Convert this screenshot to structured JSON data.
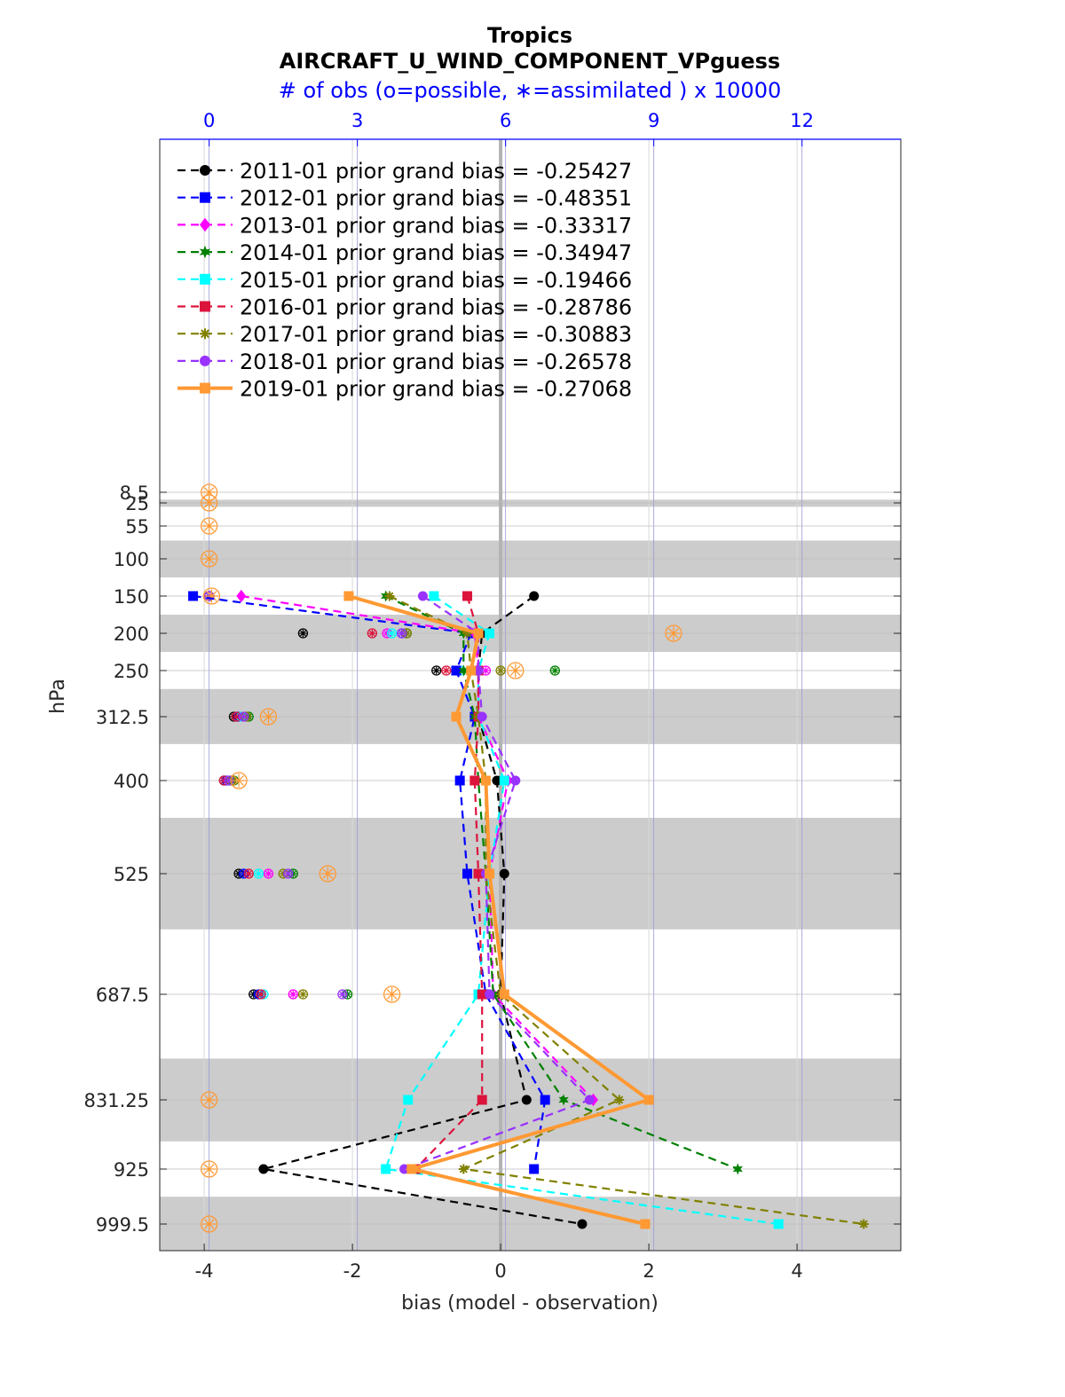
{
  "chart_data": {
    "type": "line",
    "title": "Tropics",
    "subtitle": "AIRCRAFT_U_WIND_COMPONENT_VPguess",
    "top_axis_label": "# of obs (o=possible, ∗=assimilated ) x 10000",
    "xlabel": "bias (model - observation)",
    "ylabel": "hPa",
    "xlim": [
      -4.6,
      5.4
    ],
    "x_ticks": [
      -4,
      -2,
      0,
      2,
      4
    ],
    "x_tick_labels": [
      "-4",
      "-2",
      "0",
      "2",
      "4"
    ],
    "top_xlim": [
      -1,
      14
    ],
    "top_ticks": [
      0,
      3,
      6,
      9,
      12
    ],
    "top_tick_labels": [
      "0",
      "3",
      "6",
      "9",
      "12"
    ],
    "levels": [
      8.5,
      25,
      55,
      100,
      150,
      200,
      250,
      312.5,
      400,
      525,
      687.5,
      831.25,
      925,
      999.5
    ],
    "level_labels": [
      "8.5",
      "25",
      "55",
      "100",
      "150",
      "200",
      "250",
      "312.5",
      "400",
      "525",
      "687.5",
      "831.25",
      "925",
      "999.5"
    ],
    "shaded_bands_hpa": [
      [
        20,
        30
      ],
      [
        75,
        125
      ],
      [
        175,
        225
      ],
      [
        275,
        350
      ],
      [
        450,
        600
      ],
      [
        775,
        887.5
      ],
      [
        962.5,
        1037.5
      ]
    ],
    "zero_line": 0,
    "legend_location": "top-left",
    "grid": true,
    "series": [
      {
        "name": "2011-01 prior grand bias = -0.25427",
        "color": "#000000",
        "marker": "circle",
        "style": "dashed",
        "levels": [
          150,
          200,
          250,
          312.5,
          400,
          525,
          687.5,
          831.25,
          925,
          999.5
        ],
        "values": [
          0.45,
          -0.25,
          -0.3,
          -0.3,
          -0.05,
          0.05,
          0.0,
          0.35,
          -3.2,
          1.1
        ]
      },
      {
        "name": "2012-01 prior grand bias = -0.48351",
        "color": "#0000ff",
        "marker": "square",
        "style": "dashed",
        "levels": [
          150,
          200,
          250,
          312.5,
          400,
          525,
          687.5,
          831.25,
          925
        ],
        "values": [
          -4.15,
          -0.4,
          -0.6,
          -0.35,
          -0.55,
          -0.45,
          -0.2,
          0.6,
          0.45
        ]
      },
      {
        "name": "2013-01 prior grand bias = -0.33317",
        "color": "#ff00ff",
        "marker": "diamond",
        "style": "dashed",
        "levels": [
          150,
          200,
          250,
          312.5,
          400,
          525,
          687.5,
          831.25
        ],
        "values": [
          -3.5,
          -0.35,
          -0.3,
          -0.3,
          0.1,
          -0.15,
          -0.1,
          1.25
        ]
      },
      {
        "name": "2014-01 prior grand bias = -0.34947",
        "color": "#008000",
        "marker": "hexagram",
        "style": "dashed",
        "levels": [
          150,
          200,
          250,
          312.5,
          400,
          525,
          687.5,
          831.25,
          925
        ],
        "values": [
          -1.55,
          -0.5,
          -0.5,
          -0.35,
          -0.3,
          -0.2,
          -0.1,
          0.85,
          3.2
        ]
      },
      {
        "name": "2015-01 prior grand bias = -0.19466",
        "color": "#00ffff",
        "marker": "square",
        "style": "dashed",
        "levels": [
          150,
          200,
          250,
          312.5,
          400,
          525,
          687.5,
          831.25,
          925,
          999.5
        ],
        "values": [
          -0.9,
          -0.15,
          -0.3,
          -0.3,
          0.05,
          -0.15,
          -0.3,
          -1.25,
          -1.55,
          3.75
        ]
      },
      {
        "name": "2016-01 prior grand bias = -0.28786",
        "color": "#dc143c",
        "marker": "square",
        "style": "dashed",
        "levels": [
          150,
          200,
          250,
          312.5,
          400,
          525,
          687.5,
          831.25,
          925
        ],
        "values": [
          -0.45,
          -0.3,
          -0.3,
          -0.3,
          -0.35,
          -0.3,
          -0.25,
          -0.25,
          -1.15
        ]
      },
      {
        "name": "2017-01 prior grand bias = -0.30883",
        "color": "#808000",
        "marker": "asterisk",
        "style": "dashed",
        "levels": [
          150,
          200,
          250,
          312.5,
          400,
          525,
          687.5,
          831.25,
          925,
          999.5
        ],
        "values": [
          -1.5,
          -0.45,
          -0.4,
          -0.3,
          -0.2,
          -0.2,
          0.0,
          1.6,
          -0.5,
          4.9
        ]
      },
      {
        "name": "2018-01 prior grand bias = -0.26578",
        "color": "#9932ff",
        "marker": "circle",
        "style": "dashed",
        "levels": [
          150,
          200,
          250,
          312.5,
          400,
          525,
          687.5,
          831.25,
          925
        ],
        "values": [
          -1.05,
          -0.3,
          -0.3,
          -0.25,
          0.2,
          -0.2,
          -0.15,
          1.2,
          -1.3
        ]
      },
      {
        "name": "2019-01 prior grand bias = -0.27068",
        "color": "#ff9933",
        "marker": "square",
        "style": "solid",
        "levels": [
          150,
          200,
          250,
          312.5,
          400,
          525,
          687.5,
          831.25,
          925,
          999.5
        ],
        "values": [
          -2.05,
          -0.3,
          -0.4,
          -0.6,
          -0.2,
          -0.15,
          0.05,
          2.0,
          -1.2,
          1.95
        ]
      }
    ],
    "obs_counts_x10000": [
      {
        "name": "2011-01",
        "color": "#000000",
        "levels": [
          150,
          200,
          250,
          312.5,
          400,
          525,
          687.5
        ],
        "possible": [
          0,
          1.9,
          4.6,
          0.5,
          0.3,
          0.6,
          0.9
        ],
        "assimilated": [
          0,
          1.9,
          4.6,
          0.5,
          0.3,
          0.6,
          0.9
        ]
      },
      {
        "name": "2012-01",
        "color": "#0000ff",
        "levels": [
          150,
          200,
          250,
          312.5,
          400,
          525,
          687.5
        ],
        "possible": [
          0,
          3.9,
          5.0,
          0.6,
          0.35,
          0.7,
          1.0
        ],
        "assimilated": [
          0,
          3.9,
          5.0,
          0.6,
          0.35,
          0.7,
          1.0
        ]
      },
      {
        "name": "2013-01",
        "color": "#ff00ff",
        "levels": [
          150,
          200,
          250,
          312.5,
          400,
          525,
          687.5
        ],
        "possible": [
          0,
          3.6,
          5.6,
          0.7,
          0.45,
          1.2,
          1.7
        ],
        "assimilated": [
          0,
          3.6,
          5.6,
          0.7,
          0.45,
          1.2,
          1.7
        ]
      },
      {
        "name": "2014-01",
        "color": "#008000",
        "levels": [
          150,
          200,
          250,
          312.5,
          400,
          525,
          687.5
        ],
        "possible": [
          0,
          4.0,
          7.0,
          0.8,
          0.5,
          1.7,
          2.8
        ],
        "assimilated": [
          0,
          4.0,
          7.0,
          0.8,
          0.5,
          1.7,
          2.8
        ]
      },
      {
        "name": "2015-01",
        "color": "#00ffff",
        "levels": [
          150,
          200,
          250,
          312.5,
          400,
          525,
          687.5
        ],
        "possible": [
          0,
          3.7,
          5.1,
          0.65,
          0.4,
          1.0,
          1.1
        ],
        "assimilated": [
          0,
          3.7,
          5.1,
          0.65,
          0.4,
          1.0,
          1.1
        ]
      },
      {
        "name": "2016-01",
        "color": "#dc143c",
        "levels": [
          150,
          200,
          250,
          312.5,
          400,
          525,
          687.5
        ],
        "possible": [
          0,
          3.3,
          4.8,
          0.55,
          0.3,
          0.8,
          1.05
        ],
        "assimilated": [
          0,
          3.3,
          4.8,
          0.55,
          0.3,
          0.8,
          1.05
        ]
      },
      {
        "name": "2017-01",
        "color": "#808000",
        "levels": [
          150,
          200,
          250,
          312.5,
          400,
          525,
          687.5
        ],
        "possible": [
          0,
          4.0,
          5.9,
          0.75,
          0.45,
          1.5,
          1.9
        ],
        "assimilated": [
          0,
          4.0,
          5.9,
          0.75,
          0.45,
          1.5,
          1.9
        ]
      },
      {
        "name": "2018-01",
        "color": "#9932ff",
        "levels": [
          150,
          200,
          250,
          312.5,
          400,
          525,
          687.5
        ],
        "possible": [
          0,
          3.9,
          5.4,
          0.7,
          0.4,
          1.6,
          2.7
        ],
        "assimilated": [
          0,
          3.9,
          5.4,
          0.7,
          0.4,
          1.6,
          2.7
        ]
      },
      {
        "name": "2019-01",
        "color": "#ff9933",
        "levels": [
          8.5,
          25,
          55,
          100,
          150,
          200,
          250,
          312.5,
          400,
          525,
          687.5,
          831.25,
          925,
          999.5
        ],
        "possible": [
          0,
          0,
          0,
          0,
          0.05,
          9.4,
          6.2,
          1.2,
          0.6,
          2.4,
          3.7,
          0,
          0,
          0
        ],
        "assimilated": [
          0,
          0,
          0,
          0,
          0.05,
          9.4,
          6.2,
          1.2,
          0.6,
          2.4,
          3.7,
          0,
          0,
          0
        ]
      }
    ]
  }
}
